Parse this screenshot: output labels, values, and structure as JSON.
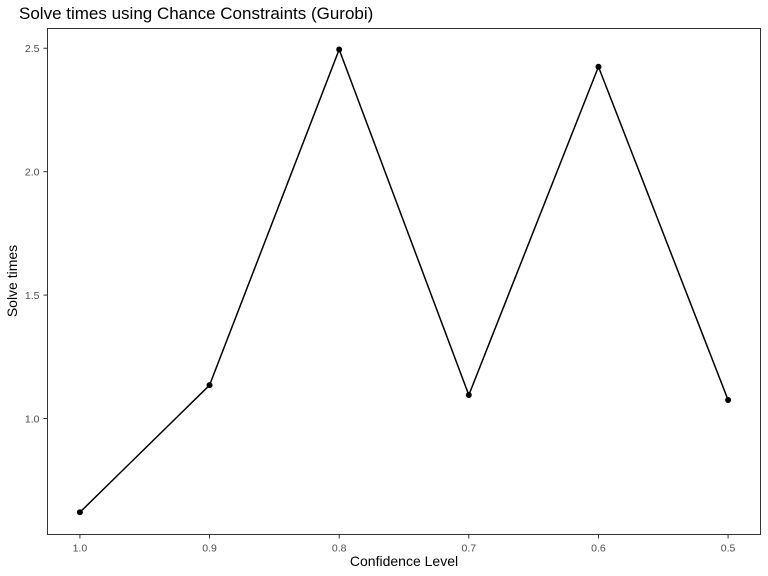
{
  "chart_data": {
    "type": "line",
    "title": "Solve times using Chance Constraints (Gurobi)",
    "xlabel": "Confidence Level",
    "ylabel": "Solve times",
    "x": [
      1.0,
      0.9,
      0.8,
      0.7,
      0.6,
      0.5
    ],
    "x_tick_labels": [
      "1.0",
      "0.9",
      "0.8",
      "0.7",
      "0.6",
      "0.5"
    ],
    "x_reversed": true,
    "xlim": [
      1.025,
      0.475
    ],
    "y_ticks": [
      1.0,
      1.5,
      2.0,
      2.5
    ],
    "y_tick_labels": [
      "1.0",
      "1.5",
      "2.0",
      "2.5"
    ],
    "ylim": [
      0.53,
      2.58
    ],
    "series": [
      {
        "values": [
          0.62,
          1.135,
          2.495,
          1.095,
          2.425,
          1.075
        ]
      }
    ],
    "grid": false,
    "colors": {
      "line": "#000000",
      "point": "#000000",
      "border": "#333333"
    }
  }
}
